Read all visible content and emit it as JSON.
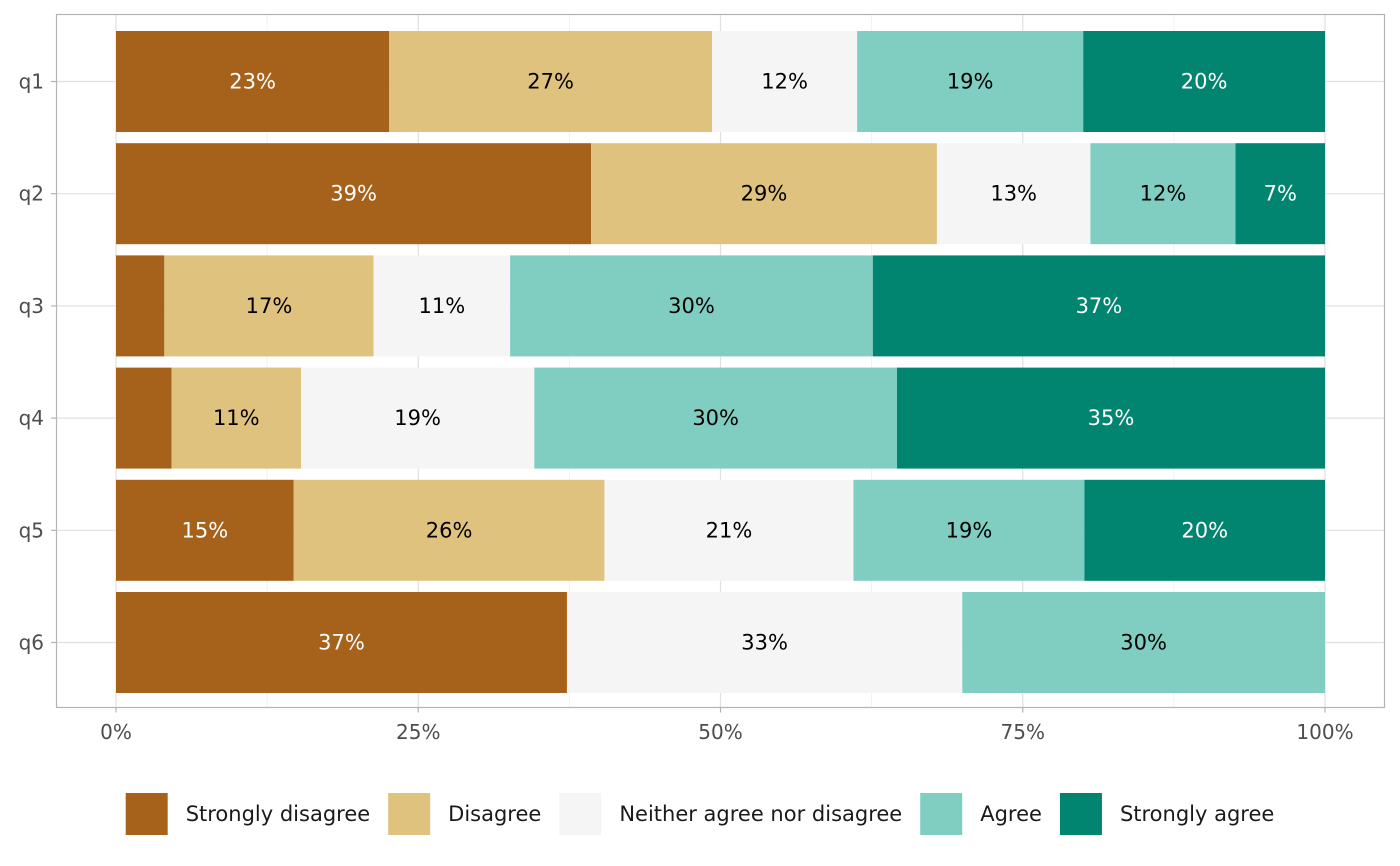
{
  "chart_data": {
    "type": "bar",
    "orientation": "horizontal",
    "stacked": true,
    "normalized": true,
    "categories": [
      "q1",
      "q2",
      "q3",
      "q4",
      "q5",
      "q6"
    ],
    "xlim": [
      0,
      100
    ],
    "x_ticks": [
      0,
      25,
      50,
      75,
      100
    ],
    "x_tick_labels": [
      "0%",
      "25%",
      "50%",
      "75%",
      "100%"
    ],
    "grid": true,
    "legend_position": "bottom",
    "series": [
      {
        "name": "Strongly disagree",
        "color": "#a6611a",
        "label_color": "#ffffff",
        "values": [
          22.6,
          39.3,
          4.0,
          4.6,
          14.7,
          37.3
        ],
        "labels": [
          "23%",
          "39%",
          "",
          "",
          "15%",
          "37%"
        ]
      },
      {
        "name": "Disagree",
        "color": "#dfc27d",
        "label_color": "#000000",
        "values": [
          26.7,
          28.6,
          17.3,
          10.7,
          25.7,
          0
        ],
        "labels": [
          "27%",
          "29%",
          "17%",
          "11%",
          "26%",
          ""
        ]
      },
      {
        "name": "Neither agree nor disagree",
        "color": "#f5f5f5",
        "label_color": "#000000",
        "values": [
          12.0,
          12.7,
          11.3,
          19.3,
          20.6,
          32.7
        ],
        "labels": [
          "12%",
          "13%",
          "11%",
          "19%",
          "21%",
          "33%"
        ]
      },
      {
        "name": "Agree",
        "color": "#80cdc1",
        "label_color": "#000000",
        "values": [
          18.7,
          12.0,
          30.0,
          30.0,
          19.1,
          30.0
        ],
        "labels": [
          "19%",
          "12%",
          "30%",
          "30%",
          "19%",
          "30%"
        ]
      },
      {
        "name": "Strongly agree",
        "color": "#018571",
        "label_color": "#ffffff",
        "values": [
          20.0,
          7.4,
          37.4,
          35.4,
          19.9,
          0
        ],
        "labels": [
          "20%",
          "7%",
          "37%",
          "35%",
          "20%",
          ""
        ]
      }
    ]
  }
}
